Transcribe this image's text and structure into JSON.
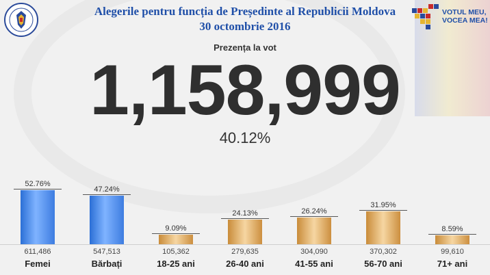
{
  "header": {
    "title": "Alegerile pentru funcția de Președinte al Republicii Moldova",
    "date": "30 octombrie 2016",
    "logo_line1": "VOTUL MEU,",
    "logo_line2": "VOCEA MEA!"
  },
  "turnout": {
    "label": "Prezența la vot",
    "total": "1,158,999",
    "percent": "40.12%"
  },
  "colors": {
    "title_blue": "#1f4fa8",
    "bar_blue": "#4a8ae6",
    "bar_gold": "#e6b577"
  },
  "chart_data": {
    "type": "bar",
    "title": "",
    "categories": [
      "Femei",
      "Bărbați",
      "18-25 ani",
      "26-40 ani",
      "41-55 ani",
      "56-70 ani",
      "71+ ani"
    ],
    "values": [
      52.76,
      47.24,
      9.09,
      24.13,
      26.24,
      31.95,
      8.59
    ],
    "percent_labels": [
      "52.76%",
      "47.24%",
      "9.09%",
      "24.13%",
      "26.24%",
      "31.95%",
      "8.59%"
    ],
    "counts": [
      "611,486",
      "547,513",
      "105,362",
      "279,635",
      "304,090",
      "370,302",
      "99,610"
    ],
    "series_groups": [
      "gender",
      "gender",
      "age",
      "age",
      "age",
      "age",
      "age"
    ],
    "ylim": [
      0,
      60
    ]
  }
}
